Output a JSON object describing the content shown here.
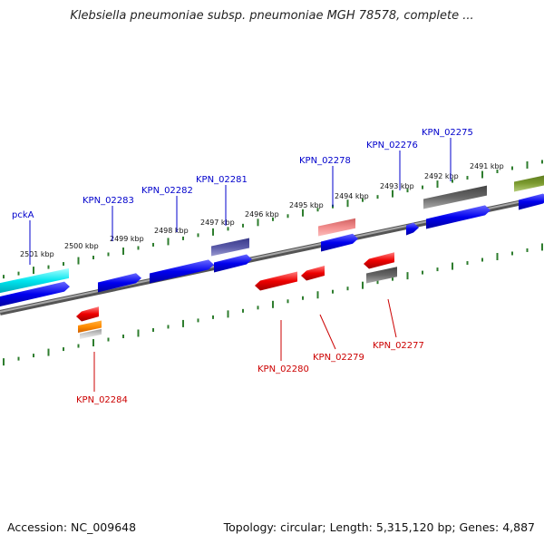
{
  "title": "Klebsiella pneumoniae subsp. pneumoniae MGH 78578, complete ...",
  "footer": {
    "accession": "Accession: NC_009648",
    "summary": "Topology: circular; Length: 5,315,120 bp; Genes: 4,887"
  },
  "colors": {
    "backbone": "#808080",
    "forward_label": "#0000cc",
    "reverse_label": "#cc0000",
    "tick": "#2e7d2e"
  },
  "scale_ticks": [
    "2501 kbp",
    "2500 kbp",
    "2499 kbp",
    "2498 kbp",
    "2497 kbp",
    "2496 kbp",
    "2495 kbp",
    "2494 kbp",
    "2493 kbp",
    "2492 kbp",
    "2491 kbp"
  ],
  "forward_gene_labels": [
    "pckA",
    "KPN_02283",
    "KPN_02282",
    "KPN_02281",
    "KPN_02278",
    "KPN_02276",
    "KPN_02275"
  ],
  "reverse_gene_labels": [
    "KPN_02284",
    "KPN_02280",
    "KPN_02279",
    "KPN_02277"
  ]
}
